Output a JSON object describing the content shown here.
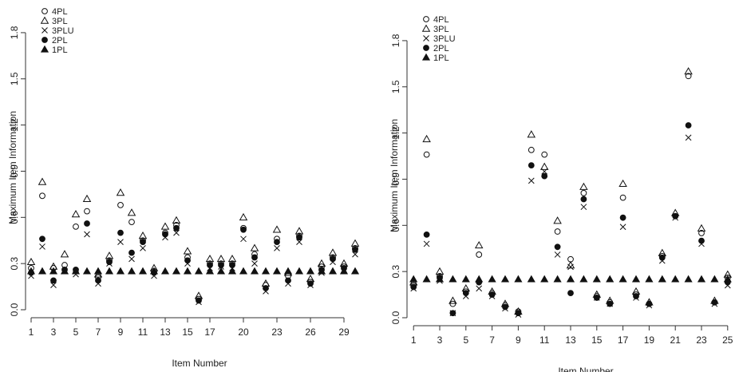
{
  "chart_data": [
    {
      "type": "scatter",
      "title": "",
      "xlabel": "Item Number",
      "ylabel": "Maximum Item Information",
      "ylim": [
        0,
        1.95
      ],
      "yticks": [
        "0.0",
        "0.3",
        "0.6",
        "0.9",
        "1.2",
        "1.5",
        "1.8"
      ],
      "xlim": [
        0.5,
        30.5
      ],
      "xticks": [
        "1",
        "3",
        "5",
        "7",
        "9",
        "11",
        "13",
        "15",
        "17",
        "20",
        "23",
        "26",
        "29"
      ],
      "legend_position": "top-left",
      "legend": [
        {
          "label": "4PL",
          "marker": "open-circle"
        },
        {
          "label": "3PL",
          "marker": "open-triangle"
        },
        {
          "label": "3PLU",
          "marker": "cross"
        },
        {
          "label": "2PL",
          "marker": "filled-circle"
        },
        {
          "label": "1PL",
          "marker": "filled-triangle"
        }
      ],
      "x": [
        1,
        2,
        3,
        4,
        5,
        6,
        7,
        8,
        9,
        10,
        11,
        12,
        13,
        14,
        15,
        16,
        17,
        18,
        19,
        20,
        21,
        22,
        23,
        24,
        25,
        26,
        27,
        28,
        29,
        30
      ],
      "series": [
        {
          "key": "4PL",
          "values": [
            0.27,
            0.74,
            0.27,
            0.29,
            0.54,
            0.64,
            0.21,
            0.32,
            0.68,
            0.57,
            0.45,
            0.25,
            0.5,
            0.55,
            0.34,
            0.07,
            0.3,
            0.3,
            0.3,
            0.53,
            0.36,
            0.16,
            0.46,
            0.22,
            0.48,
            0.18,
            0.28,
            0.34,
            0.28,
            0.4
          ]
        },
        {
          "key": "3PL",
          "values": [
            0.31,
            0.83,
            0.28,
            0.36,
            0.62,
            0.72,
            0.23,
            0.35,
            0.76,
            0.63,
            0.48,
            0.27,
            0.54,
            0.58,
            0.38,
            0.09,
            0.33,
            0.33,
            0.33,
            0.6,
            0.4,
            0.17,
            0.52,
            0.24,
            0.51,
            0.2,
            0.3,
            0.37,
            0.3,
            0.43
          ]
        },
        {
          "key": "3PLU",
          "values": [
            0.22,
            0.41,
            0.16,
            0.25,
            0.23,
            0.49,
            0.17,
            0.3,
            0.44,
            0.33,
            0.4,
            0.22,
            0.47,
            0.5,
            0.3,
            0.05,
            0.27,
            0.28,
            0.27,
            0.46,
            0.3,
            0.12,
            0.4,
            0.17,
            0.44,
            0.16,
            0.24,
            0.31,
            0.26,
            0.36
          ]
        },
        {
          "key": "2PL",
          "values": [
            0.24,
            0.46,
            0.19,
            0.26,
            0.26,
            0.56,
            0.19,
            0.31,
            0.5,
            0.37,
            0.44,
            0.24,
            0.49,
            0.53,
            0.32,
            0.06,
            0.29,
            0.29,
            0.29,
            0.52,
            0.34,
            0.14,
            0.44,
            0.19,
            0.47,
            0.17,
            0.26,
            0.33,
            0.27,
            0.39
          ]
        },
        {
          "key": "1PL",
          "values": [
            0.25,
            0.25,
            0.25,
            0.25,
            0.25,
            0.25,
            0.25,
            0.25,
            0.25,
            0.25,
            0.25,
            0.25,
            0.25,
            0.25,
            0.25,
            0.25,
            0.25,
            0.25,
            0.25,
            0.25,
            0.25,
            0.25,
            0.25,
            0.25,
            0.25,
            0.25,
            0.25,
            0.25,
            0.25,
            0.25
          ]
        }
      ]
    },
    {
      "type": "scatter",
      "title": "",
      "xlabel": "Item Number",
      "ylabel": "Maximum Item Information",
      "ylim": [
        0,
        1.95
      ],
      "yticks": [
        "0.0",
        "0.3",
        "0.6",
        "0.9",
        "1.2",
        "1.5",
        "1.8"
      ],
      "xlim": [
        0.5,
        25.5
      ],
      "xticks": [
        "1",
        "3",
        "5",
        "7",
        "9",
        "11",
        "13",
        "15",
        "17",
        "19",
        "21",
        "23",
        "25"
      ],
      "legend_position": "top-left",
      "legend": [
        {
          "label": "4PL",
          "marker": "open-circle"
        },
        {
          "label": "3PL",
          "marker": "open-triangle"
        },
        {
          "label": "3PLU",
          "marker": "cross"
        },
        {
          "label": "2PL",
          "marker": "filled-circle"
        },
        {
          "label": "1PL",
          "marker": "filled-triangle"
        }
      ],
      "x": [
        1,
        2,
        3,
        4,
        5,
        6,
        7,
        8,
        9,
        10,
        11,
        12,
        13,
        14,
        15,
        16,
        17,
        18,
        19,
        20,
        21,
        22,
        23,
        24,
        25
      ],
      "series": [
        {
          "key": "4PL",
          "values": [
            0.21,
            1.06,
            0.27,
            0.09,
            0.17,
            0.41,
            0.16,
            0.08,
            0.04,
            1.09,
            1.06,
            0.56,
            0.38,
            0.81,
            0.14,
            0.1,
            0.78,
            0.15,
            0.09,
            0.4,
            0.66,
            1.57,
            0.55,
            0.1,
            0.26
          ]
        },
        {
          "key": "3PL",
          "values": [
            0.23,
            1.16,
            0.3,
            0.11,
            0.19,
            0.47,
            0.17,
            0.09,
            0.04,
            1.19,
            0.98,
            0.63,
            0.34,
            0.85,
            0.15,
            0.11,
            0.87,
            0.17,
            0.1,
            0.42,
            0.68,
            1.6,
            0.58,
            0.11,
            0.28
          ]
        },
        {
          "key": "3PLU",
          "values": [
            0.19,
            0.48,
            0.24,
            0.03,
            0.14,
            0.19,
            0.14,
            0.06,
            0.02,
            0.89,
            0.95,
            0.41,
            0.33,
            0.72,
            0.13,
            0.09,
            0.59,
            0.13,
            0.08,
            0.37,
            0.65,
            1.17,
            0.48,
            0.09,
            0.21
          ]
        },
        {
          "key": "2PL",
          "values": [
            0.2,
            0.54,
            0.26,
            0.03,
            0.16,
            0.23,
            0.15,
            0.07,
            0.03,
            0.99,
            0.92,
            0.46,
            0.16,
            0.77,
            0.13,
            0.09,
            0.65,
            0.14,
            0.09,
            0.39,
            0.66,
            1.25,
            0.5,
            0.1,
            0.23
          ]
        },
        {
          "key": "1PL",
          "values": [
            0.25,
            0.25,
            0.25,
            0.25,
            0.25,
            0.25,
            0.25,
            0.25,
            0.25,
            0.25,
            0.25,
            0.25,
            0.25,
            0.25,
            0.25,
            0.25,
            0.25,
            0.25,
            0.25,
            0.25,
            0.25,
            0.25,
            0.25,
            0.25,
            0.25
          ]
        }
      ]
    }
  ]
}
